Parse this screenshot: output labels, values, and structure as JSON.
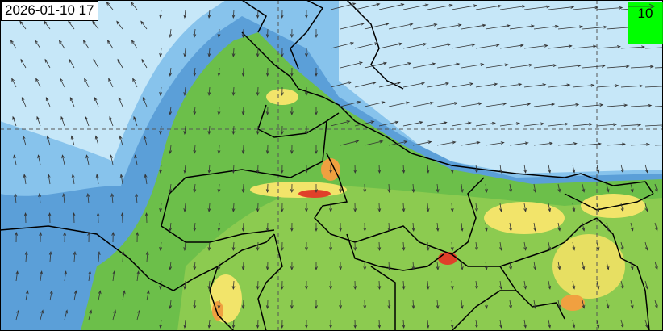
{
  "timestamp": "2026-01-10 17",
  "legend": {
    "reference_wind_value": "10",
    "arrow_icon": "wind-arrow-icon",
    "background_color": "#00ff00"
  },
  "colors": {
    "sky": "#c6e7f8",
    "light_blue": "#87c3ec",
    "mid_blue": "#5b9fd8",
    "green": "#6cbf4a",
    "light_green": "#a8d65a",
    "yellow": "#f2e46a",
    "orange": "#f0a040",
    "red": "#e0402a"
  }
}
